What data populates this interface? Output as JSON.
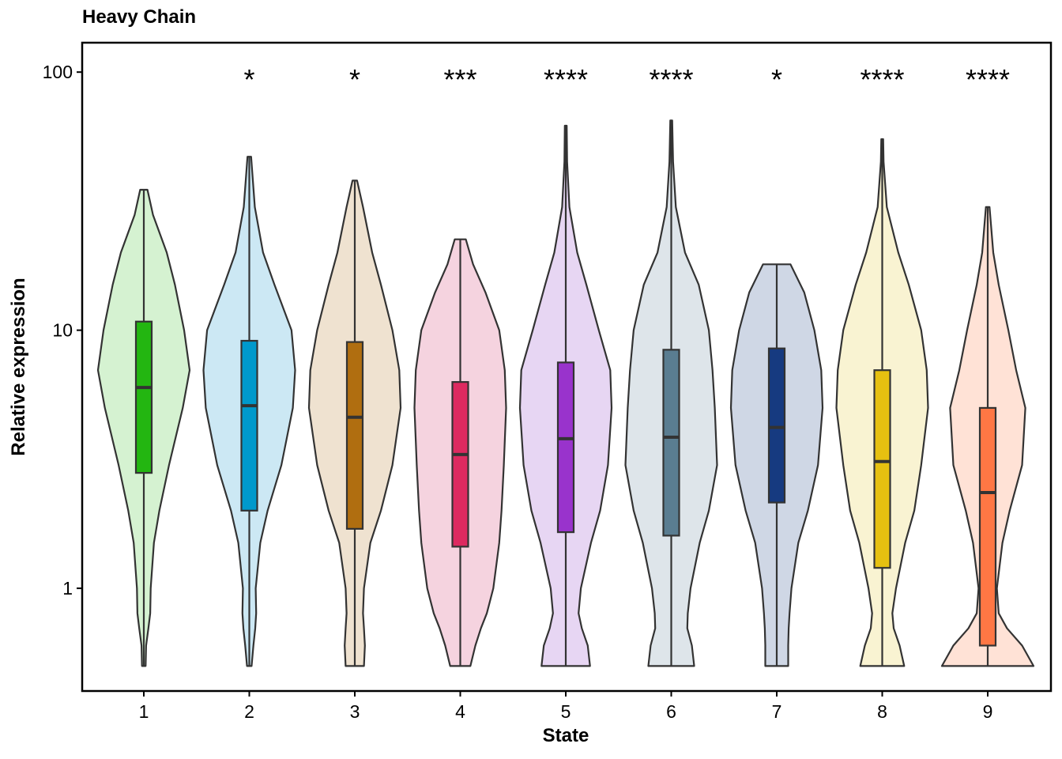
{
  "chart_data": {
    "type": "violin",
    "title": "Heavy Chain",
    "xlabel": "State",
    "ylabel": "Relative expression",
    "yscale": "log10",
    "ylim": [
      0.4,
      130
    ],
    "yticks": [
      1,
      10,
      100
    ],
    "ytick_labels": [
      "1",
      "10",
      "100"
    ],
    "grid": false,
    "categories": [
      "1",
      "2",
      "3",
      "4",
      "5",
      "6",
      "7",
      "8",
      "9"
    ],
    "groups": [
      {
        "state": "1",
        "fill": "#d5f2d1",
        "box_fill": "#23b611",
        "min": 0.5,
        "q1": 2.8,
        "median": 6.0,
        "q3": 10.8,
        "max": 35,
        "significance": "",
        "profile": [
          [
            0.5,
            0.04
          ],
          [
            0.6,
            0.05
          ],
          [
            0.7,
            0.1
          ],
          [
            0.8,
            0.14
          ],
          [
            1.0,
            0.15
          ],
          [
            1.5,
            0.22
          ],
          [
            2,
            0.34
          ],
          [
            3,
            0.55
          ],
          [
            5,
            0.85
          ],
          [
            7,
            1.0
          ],
          [
            10,
            0.88
          ],
          [
            15,
            0.68
          ],
          [
            20,
            0.5
          ],
          [
            28,
            0.2
          ],
          [
            35,
            0.08
          ]
        ]
      },
      {
        "state": "2",
        "fill": "#cce8f4",
        "box_fill": "#0099cc",
        "min": 0.5,
        "q1": 2.0,
        "median": 5.1,
        "q3": 9.1,
        "max": 47,
        "significance": "*",
        "profile": [
          [
            0.5,
            0.05
          ],
          [
            0.6,
            0.09
          ],
          [
            0.7,
            0.13
          ],
          [
            0.8,
            0.15
          ],
          [
            1.0,
            0.14
          ],
          [
            1.5,
            0.24
          ],
          [
            2,
            0.4
          ],
          [
            3,
            0.7
          ],
          [
            5,
            0.95
          ],
          [
            7,
            1.0
          ],
          [
            10,
            0.92
          ],
          [
            15,
            0.55
          ],
          [
            20,
            0.3
          ],
          [
            30,
            0.12
          ],
          [
            47,
            0.04
          ]
        ]
      },
      {
        "state": "3",
        "fill": "#efe2d0",
        "box_fill": "#b06e10",
        "min": 0.5,
        "q1": 1.7,
        "median": 4.6,
        "q3": 9.0,
        "max": 38,
        "significance": "*",
        "profile": [
          [
            0.5,
            0.2
          ],
          [
            0.6,
            0.22
          ],
          [
            0.7,
            0.2
          ],
          [
            0.8,
            0.18
          ],
          [
            1.0,
            0.2
          ],
          [
            1.5,
            0.34
          ],
          [
            2,
            0.57
          ],
          [
            3,
            0.82
          ],
          [
            5,
            1.0
          ],
          [
            7,
            0.97
          ],
          [
            10,
            0.82
          ],
          [
            15,
            0.57
          ],
          [
            20,
            0.38
          ],
          [
            30,
            0.18
          ],
          [
            38,
            0.05
          ]
        ]
      },
      {
        "state": "4",
        "fill": "#f5d3df",
        "box_fill": "#dd2a60",
        "min": 0.5,
        "q1": 1.45,
        "median": 3.3,
        "q3": 6.3,
        "max": 22.5,
        "significance": "***",
        "profile": [
          [
            0.5,
            0.22
          ],
          [
            0.6,
            0.33
          ],
          [
            0.7,
            0.45
          ],
          [
            0.8,
            0.58
          ],
          [
            1.0,
            0.72
          ],
          [
            1.5,
            0.85
          ],
          [
            2,
            0.9
          ],
          [
            3,
            0.95
          ],
          [
            5,
            1.0
          ],
          [
            7,
            0.97
          ],
          [
            10,
            0.85
          ],
          [
            14,
            0.55
          ],
          [
            18,
            0.28
          ],
          [
            22.5,
            0.12
          ]
        ]
      },
      {
        "state": "5",
        "fill": "#e7d6f3",
        "box_fill": "#9933cc",
        "min": 0.5,
        "q1": 1.65,
        "median": 3.8,
        "q3": 7.5,
        "max": 62,
        "significance": "****",
        "profile": [
          [
            0.5,
            0.53
          ],
          [
            0.6,
            0.48
          ],
          [
            0.7,
            0.35
          ],
          [
            0.8,
            0.28
          ],
          [
            1.0,
            0.33
          ],
          [
            1.5,
            0.55
          ],
          [
            2,
            0.75
          ],
          [
            3,
            0.92
          ],
          [
            5,
            1.0
          ],
          [
            7,
            0.97
          ],
          [
            10,
            0.72
          ],
          [
            15,
            0.45
          ],
          [
            20,
            0.25
          ],
          [
            30,
            0.08
          ],
          [
            45,
            0.03
          ],
          [
            62,
            0.02
          ]
        ]
      },
      {
        "state": "6",
        "fill": "#dee5ea",
        "box_fill": "#5a7d91",
        "min": 0.5,
        "q1": 1.6,
        "median": 3.85,
        "q3": 8.4,
        "max": 65,
        "significance": "****",
        "profile": [
          [
            0.5,
            0.5
          ],
          [
            0.6,
            0.45
          ],
          [
            0.7,
            0.35
          ],
          [
            0.8,
            0.36
          ],
          [
            1.0,
            0.42
          ],
          [
            1.5,
            0.62
          ],
          [
            2,
            0.82
          ],
          [
            3,
            1.0
          ],
          [
            5,
            0.95
          ],
          [
            7,
            0.9
          ],
          [
            10,
            0.82
          ],
          [
            15,
            0.6
          ],
          [
            20,
            0.3
          ],
          [
            30,
            0.1
          ],
          [
            45,
            0.04
          ],
          [
            65,
            0.02
          ]
        ]
      },
      {
        "state": "7",
        "fill": "#cfd7e5",
        "box_fill": "#163a80",
        "min": 0.5,
        "q1": 2.15,
        "median": 4.2,
        "q3": 8.5,
        "max": 18,
        "significance": "*",
        "profile": [
          [
            0.5,
            0.25
          ],
          [
            0.6,
            0.25
          ],
          [
            0.7,
            0.26
          ],
          [
            0.8,
            0.28
          ],
          [
            1.0,
            0.32
          ],
          [
            1.5,
            0.47
          ],
          [
            2,
            0.68
          ],
          [
            3,
            0.9
          ],
          [
            5,
            1.0
          ],
          [
            7,
            0.97
          ],
          [
            10,
            0.82
          ],
          [
            14,
            0.6
          ],
          [
            18,
            0.3
          ]
        ]
      },
      {
        "state": "8",
        "fill": "#f9f3d2",
        "box_fill": "#e6c010",
        "min": 0.5,
        "q1": 1.2,
        "median": 3.1,
        "q3": 7.0,
        "max": 55,
        "significance": "****",
        "profile": [
          [
            0.5,
            0.48
          ],
          [
            0.6,
            0.38
          ],
          [
            0.7,
            0.25
          ],
          [
            0.8,
            0.22
          ],
          [
            1.0,
            0.3
          ],
          [
            1.5,
            0.5
          ],
          [
            2,
            0.7
          ],
          [
            3,
            0.85
          ],
          [
            5,
            1.0
          ],
          [
            7,
            0.97
          ],
          [
            10,
            0.85
          ],
          [
            15,
            0.58
          ],
          [
            20,
            0.35
          ],
          [
            30,
            0.1
          ],
          [
            45,
            0.03
          ],
          [
            55,
            0.02
          ]
        ]
      },
      {
        "state": "9",
        "fill": "#ffe2d6",
        "box_fill": "#ff7744",
        "min": 0.5,
        "q1": 0.6,
        "median": 2.35,
        "q3": 5.0,
        "max": 30,
        "significance": "****",
        "profile": [
          [
            0.5,
            1.0
          ],
          [
            0.6,
            0.75
          ],
          [
            0.7,
            0.42
          ],
          [
            0.8,
            0.24
          ],
          [
            1.0,
            0.2
          ],
          [
            1.5,
            0.32
          ],
          [
            2,
            0.48
          ],
          [
            3,
            0.75
          ],
          [
            5,
            0.82
          ],
          [
            7,
            0.62
          ],
          [
            10,
            0.45
          ],
          [
            15,
            0.24
          ],
          [
            20,
            0.12
          ],
          [
            30,
            0.04
          ]
        ]
      }
    ]
  }
}
